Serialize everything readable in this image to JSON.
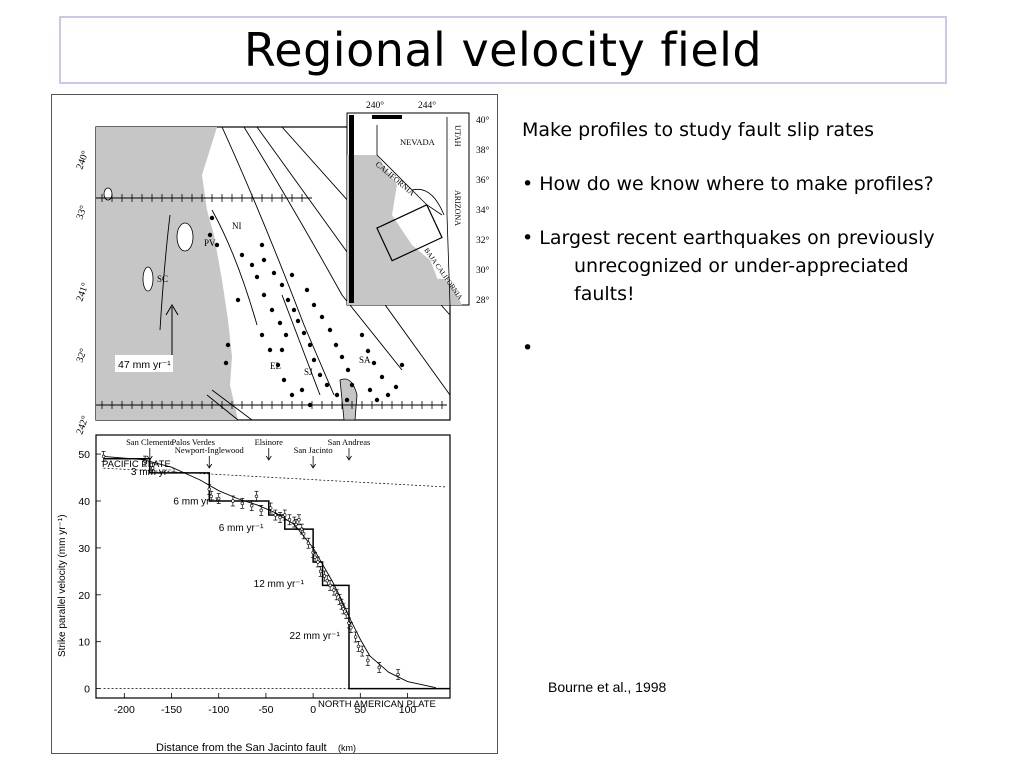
{
  "slide": {
    "title": "Regional velocity field",
    "bullets": {
      "intro": "Make profiles to study fault slip rates",
      "b1": "• How do we know where to make profiles?",
      "b2_line1": "• Largest recent earthquakes on previously",
      "b2_line2": "unrecognized or under-appreciated",
      "b2_line3": "faults!",
      "b3": "•"
    },
    "citation": "Bourne et al., 1998"
  },
  "map": {
    "lon_labels": [
      "240°",
      "241°",
      "242°"
    ],
    "lat_labels": [
      "33°",
      "32°"
    ],
    "place_labels": [
      "NI",
      "PV",
      "SC",
      "EL",
      "SJ",
      "SA"
    ],
    "arrow_label": "47 mm yr⁻¹"
  },
  "inset": {
    "lon_labels": [
      "240°",
      "244°"
    ],
    "lat_labels": [
      "40°",
      "38°",
      "36°",
      "34°",
      "32°",
      "30°",
      "28°"
    ],
    "state_labels": [
      "NEVADA",
      "UTAH",
      "CALIFORNIA",
      "ARIZONA",
      "BAJA CALIFORNIA"
    ]
  },
  "chart_data": {
    "type": "line",
    "xlabel": "Distance from the San Jacinto fault",
    "xunit": "(km)",
    "ylabel": "Strike parallel velocity (mm yr⁻¹)",
    "xlim": [
      -230,
      145
    ],
    "ylim": [
      -2,
      53
    ],
    "xticks": [
      -200,
      -150,
      -100,
      -50,
      0,
      50,
      100
    ],
    "yticks": [
      0,
      10,
      20,
      30,
      40,
      50
    ],
    "plate_labels": [
      "PACIFIC PLATE",
      "NORTH AMERICAN PLATE"
    ],
    "faults": [
      {
        "name": "San Clemente",
        "x": -173
      },
      {
        "name": "Palos Verdes",
        "x": -127
      },
      {
        "name": "Newport-Inglewood",
        "x": -110
      },
      {
        "name": "Elsinore",
        "x": -47
      },
      {
        "name": "San Jacinto",
        "x": 0
      },
      {
        "name": "San Andreas",
        "x": 38
      }
    ],
    "rate_labels": [
      {
        "text": "3 mm yr⁻¹",
        "x": -193,
        "y": 45.5
      },
      {
        "text": "6 mm yr⁻¹",
        "x": -148,
        "y": 39.2
      },
      {
        "text": "6 mm yr⁻¹",
        "x": -100,
        "y": 33.6
      },
      {
        "text": "12 mm yr⁻¹",
        "x": -63,
        "y": 21.7
      },
      {
        "text": "22 mm yr⁻¹",
        "x": -25,
        "y": 10.6
      }
    ],
    "step_model": {
      "x": [
        -222,
        -173,
        -173,
        -110,
        -110,
        -47,
        -47,
        -30,
        -30,
        0,
        0,
        10,
        10,
        38,
        38,
        145
      ],
      "y": [
        49,
        49,
        46,
        46,
        40,
        40,
        37,
        37,
        34,
        34,
        27,
        27,
        22,
        22,
        0,
        0
      ]
    },
    "smooth_model": {
      "x": [
        -222,
        -180,
        -150,
        -120,
        -100,
        -80,
        -60,
        -40,
        -20,
        0,
        10,
        20,
        30,
        40,
        50,
        60,
        80,
        100,
        130
      ],
      "y": [
        49.5,
        48.8,
        47.2,
        44.5,
        42.2,
        40.5,
        39.2,
        37.5,
        35,
        30,
        26.5,
        23,
        19,
        14.5,
        10.5,
        7,
        3.5,
        1.5,
        0.2
      ]
    },
    "reference_lines": [
      {
        "x": [
          -222,
          140
        ],
        "y": [
          47,
          43
        ]
      },
      {
        "x": [
          -222,
          140
        ],
        "y": [
          0,
          0
        ]
      }
    ],
    "observations": {
      "x": [
        -222,
        -178,
        -170,
        -110,
        -108,
        -100,
        -85,
        -75,
        -65,
        -60,
        -55,
        -45,
        -40,
        -35,
        -30,
        -25,
        -20,
        -18,
        -15,
        -12,
        -10,
        -5,
        0,
        2,
        5,
        8,
        12,
        15,
        18,
        22,
        25,
        28,
        30,
        32,
        35,
        38,
        40,
        45,
        48,
        52,
        58,
        70,
        90
      ],
      "y": [
        49.5,
        48.5,
        47,
        42.5,
        41,
        40.5,
        40,
        39.5,
        39,
        41,
        38,
        38.5,
        37,
        36.5,
        37,
        36,
        35.5,
        35,
        36,
        34,
        33,
        31,
        29,
        28,
        27,
        25,
        24,
        23,
        22,
        21,
        20,
        19,
        18,
        17,
        16,
        14,
        13,
        11,
        9,
        8,
        6,
        4.5,
        3
      ]
    }
  }
}
